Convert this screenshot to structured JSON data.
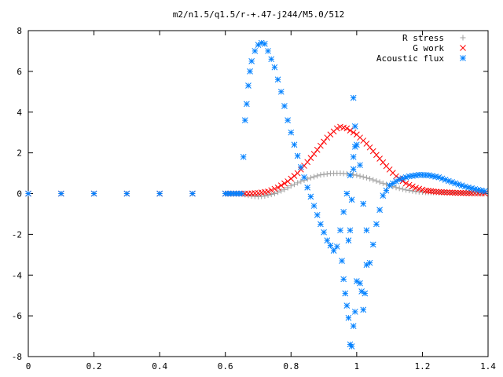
{
  "chart_data": {
    "type": "scatter",
    "title": "m2/n1.5/q1.5/r-+.47-j244/M5.0/512",
    "xlabel": "",
    "ylabel": "",
    "xlim": [
      0,
      1.4
    ],
    "ylim": [
      -8,
      8
    ],
    "x_ticks": [
      "0",
      "0.2",
      "0.4",
      "0.6",
      "0.8",
      "1",
      "1.2",
      "1.4"
    ],
    "y_ticks": [
      "8",
      "6",
      "4",
      "2",
      "0",
      "-2",
      "-4",
      "-6",
      "-8"
    ],
    "grid": false,
    "legend_position": "top-right",
    "series": [
      {
        "name": "R stress",
        "marker": "plus",
        "color": "#a0a0a0",
        "points": [
          [
            0.0,
            0
          ],
          [
            0.1,
            0
          ],
          [
            0.2,
            0
          ],
          [
            0.3,
            0
          ],
          [
            0.4,
            0
          ],
          [
            0.5,
            0
          ],
          [
            0.6,
            0
          ],
          [
            0.65,
            0
          ],
          [
            0.66,
            -0.05
          ],
          [
            0.68,
            -0.12
          ],
          [
            0.7,
            -0.15
          ],
          [
            0.72,
            -0.12
          ],
          [
            0.75,
            0.0
          ],
          [
            0.78,
            0.2
          ],
          [
            0.8,
            0.38
          ],
          [
            0.83,
            0.6
          ],
          [
            0.86,
            0.78
          ],
          [
            0.89,
            0.92
          ],
          [
            0.92,
            0.99
          ],
          [
            0.95,
            1.0
          ],
          [
            0.98,
            0.96
          ],
          [
            1.0,
            0.9
          ],
          [
            1.03,
            0.78
          ],
          [
            1.06,
            0.62
          ],
          [
            1.09,
            0.45
          ],
          [
            1.12,
            0.3
          ],
          [
            1.15,
            0.18
          ],
          [
            1.18,
            0.1
          ],
          [
            1.21,
            0.06
          ],
          [
            1.25,
            0.05
          ],
          [
            1.3,
            0.04
          ],
          [
            1.35,
            0.03
          ],
          [
            1.39,
            0.02
          ]
        ]
      },
      {
        "name": "G work",
        "marker": "cross",
        "color": "#ff0000",
        "points": [
          [
            0.0,
            0
          ],
          [
            0.1,
            0
          ],
          [
            0.2,
            0
          ],
          [
            0.3,
            0
          ],
          [
            0.4,
            0
          ],
          [
            0.5,
            0
          ],
          [
            0.6,
            0
          ],
          [
            0.65,
            0
          ],
          [
            0.67,
            0.0
          ],
          [
            0.7,
            0.03
          ],
          [
            0.73,
            0.1
          ],
          [
            0.76,
            0.3
          ],
          [
            0.79,
            0.6
          ],
          [
            0.82,
            1.0
          ],
          [
            0.85,
            1.55
          ],
          [
            0.88,
            2.15
          ],
          [
            0.91,
            2.75
          ],
          [
            0.94,
            3.2
          ],
          [
            0.95,
            3.28
          ],
          [
            0.97,
            3.2
          ],
          [
            1.0,
            2.9
          ],
          [
            1.03,
            2.45
          ],
          [
            1.06,
            1.9
          ],
          [
            1.09,
            1.35
          ],
          [
            1.12,
            0.85
          ],
          [
            1.15,
            0.5
          ],
          [
            1.18,
            0.28
          ],
          [
            1.21,
            0.15
          ],
          [
            1.25,
            0.08
          ],
          [
            1.3,
            0.04
          ],
          [
            1.35,
            0.02
          ],
          [
            1.39,
            0.01
          ]
        ]
      },
      {
        "name": "Acoustic flux",
        "marker": "star",
        "color": "#0080ff",
        "points": [
          [
            0.0,
            0
          ],
          [
            0.1,
            0
          ],
          [
            0.2,
            0
          ],
          [
            0.3,
            0
          ],
          [
            0.4,
            0
          ],
          [
            0.5,
            0
          ],
          [
            0.6,
            0
          ],
          [
            0.65,
            0
          ],
          [
            0.655,
            1.8
          ],
          [
            0.66,
            3.6
          ],
          [
            0.665,
            4.4
          ],
          [
            0.67,
            5.3
          ],
          [
            0.675,
            6.0
          ],
          [
            0.68,
            6.5
          ],
          [
            0.69,
            7.0
          ],
          [
            0.7,
            7.3
          ],
          [
            0.71,
            7.4
          ],
          [
            0.72,
            7.35
          ],
          [
            0.73,
            7.0
          ],
          [
            0.75,
            6.2
          ],
          [
            0.77,
            5.0
          ],
          [
            0.79,
            3.6
          ],
          [
            0.81,
            2.4
          ],
          [
            0.83,
            1.3
          ],
          [
            0.85,
            0.3
          ],
          [
            0.87,
            -0.6
          ],
          [
            0.89,
            -1.5
          ],
          [
            0.91,
            -2.3
          ],
          [
            0.93,
            -2.8
          ],
          [
            0.94,
            -2.6
          ],
          [
            0.95,
            -1.8
          ],
          [
            0.96,
            -0.9
          ],
          [
            0.97,
            0.0
          ],
          [
            0.98,
            0.9
          ],
          [
            0.99,
            1.8
          ],
          [
            1.0,
            2.4
          ],
          [
            1.01,
            1.4
          ],
          [
            1.02,
            -0.5
          ],
          [
            1.03,
            -1.8
          ],
          [
            1.04,
            -3.4
          ],
          [
            1.05,
            -2.5
          ],
          [
            1.06,
            -1.5
          ],
          [
            1.07,
            -0.8
          ],
          [
            1.08,
            -0.1
          ],
          [
            1.1,
            0.4
          ],
          [
            1.13,
            0.7
          ],
          [
            1.16,
            0.85
          ],
          [
            1.19,
            0.92
          ],
          [
            1.22,
            0.9
          ],
          [
            1.25,
            0.8
          ],
          [
            1.28,
            0.62
          ],
          [
            1.31,
            0.45
          ],
          [
            1.34,
            0.3
          ],
          [
            1.37,
            0.18
          ],
          [
            1.39,
            0.12
          ],
          [
            0.955,
            -3.3
          ],
          [
            0.96,
            -4.2
          ],
          [
            0.965,
            -4.9
          ],
          [
            0.97,
            -5.5
          ],
          [
            0.975,
            -6.1
          ],
          [
            0.98,
            -7.4
          ],
          [
            0.985,
            -7.5
          ],
          [
            0.99,
            -6.5
          ],
          [
            0.995,
            -5.8
          ],
          [
            1.0,
            -4.3
          ],
          [
            1.01,
            -4.4
          ],
          [
            1.015,
            -4.8
          ],
          [
            1.02,
            -5.7
          ],
          [
            1.025,
            -4.9
          ],
          [
            1.03,
            -3.5
          ],
          [
            0.975,
            -2.3
          ],
          [
            0.98,
            -1.8
          ],
          [
            0.985,
            -0.3
          ],
          [
            0.99,
            1.2
          ],
          [
            0.995,
            2.3
          ],
          [
            0.995,
            3.3
          ],
          [
            0.99,
            4.7
          ]
        ]
      }
    ]
  }
}
